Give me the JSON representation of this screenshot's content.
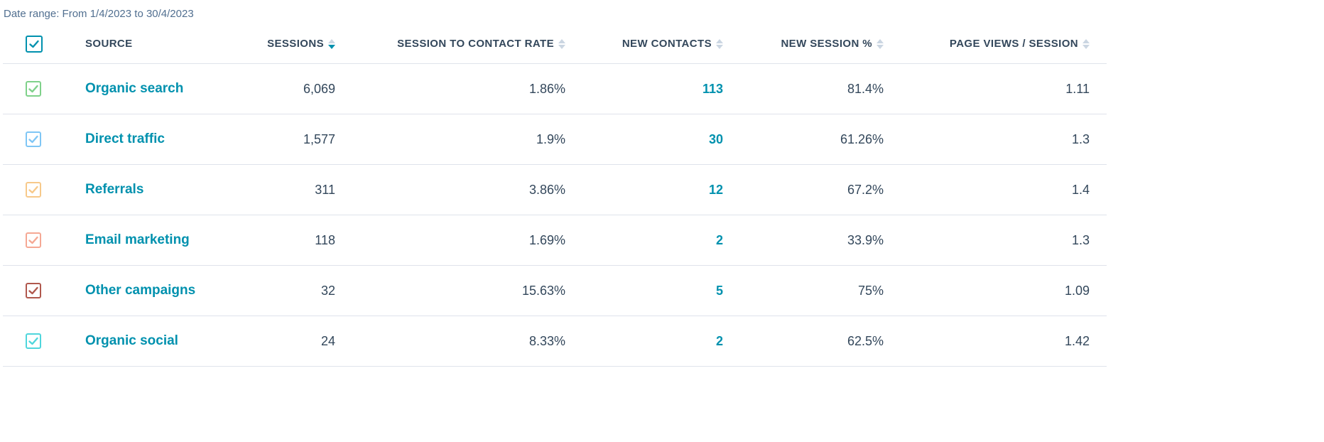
{
  "date_range_label": "Date range: From 1/4/2023 to 30/4/2023",
  "colors": {
    "accent": "#0091ae",
    "text": "#33475b",
    "border": "#dfe3eb"
  },
  "columns": {
    "source": "SOURCE",
    "sessions": "SESSIONS",
    "rate": "SESSION TO CONTACT RATE",
    "contacts": "NEW CONTACTS",
    "newsess": "NEW SESSION %",
    "pv": "PAGE VIEWS / SESSION"
  },
  "rows": [
    {
      "source": "Organic search",
      "sessions": "6,069",
      "rate": "1.86%",
      "contacts": "113",
      "newsess": "81.4%",
      "pv": "1.11",
      "color": "#7fd18a"
    },
    {
      "source": "Direct traffic",
      "sessions": "1,577",
      "rate": "1.9%",
      "contacts": "30",
      "newsess": "61.26%",
      "pv": "1.3",
      "color": "#7fc6f5"
    },
    {
      "source": "Referrals",
      "sessions": "311",
      "rate": "3.86%",
      "contacts": "12",
      "newsess": "67.2%",
      "pv": "1.4",
      "color": "#f7c98a"
    },
    {
      "source": "Email marketing",
      "sessions": "118",
      "rate": "1.69%",
      "contacts": "2",
      "newsess": "33.9%",
      "pv": "1.3",
      "color": "#f5a894"
    },
    {
      "source": "Other campaigns",
      "sessions": "32",
      "rate": "15.63%",
      "contacts": "5",
      "newsess": "75%",
      "pv": "1.09",
      "color": "#b0584d"
    },
    {
      "source": "Organic social",
      "sessions": "24",
      "rate": "8.33%",
      "contacts": "2",
      "newsess": "62.5%",
      "pv": "1.42",
      "color": "#4fd6dc"
    }
  ]
}
